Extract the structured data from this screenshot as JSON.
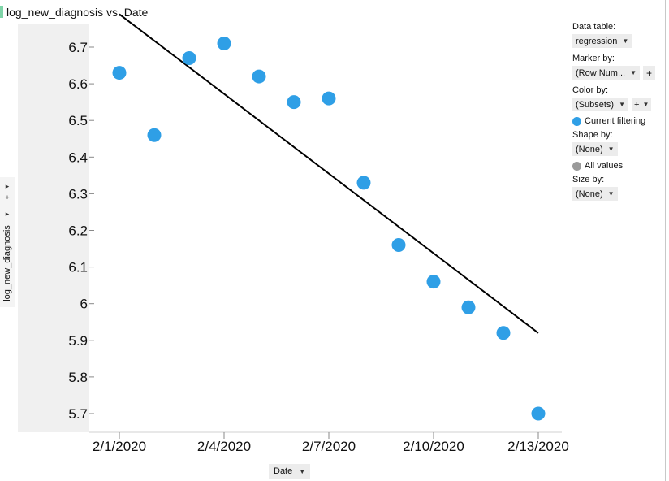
{
  "title": "log_new_diagnosis vs. Date",
  "y_axis_label": "log_new_diagnosis",
  "x_axis_button": "Date",
  "panel": {
    "data_table_label": "Data table:",
    "data_table_value": "regression",
    "marker_by_label": "Marker by:",
    "marker_by_value": "(Row Num...",
    "color_by_label": "Color by:",
    "color_by_value": "(Subsets)",
    "legend_current": "Current filtering",
    "shape_by_label": "Shape by:",
    "shape_by_value": "(None)",
    "legend_all": "All values",
    "size_by_label": "Size by:",
    "size_by_value": "(None)",
    "plus": "+"
  },
  "colors": {
    "points": "#2f9fe6",
    "all_values": "#9a9a9a",
    "regression_line": "#000000"
  },
  "chart_data": {
    "type": "scatter",
    "title": "log_new_diagnosis vs. Date",
    "xlabel": "Date",
    "ylabel": "log_new_diagnosis",
    "x_ticks": [
      "2/1/2020",
      "2/4/2020",
      "2/7/2020",
      "2/10/2020",
      "2/13/2020"
    ],
    "y_ticks": [
      "6.7",
      "6.6",
      "6.5",
      "6.4",
      "6.3",
      "6.2",
      "6.1",
      "6",
      "5.9",
      "5.8",
      "5.7"
    ],
    "ylim": [
      5.67,
      6.77
    ],
    "points": [
      {
        "x": "2/1/2020",
        "y": 6.63
      },
      {
        "x": "2/2/2020",
        "y": 6.46
      },
      {
        "x": "2/3/2020",
        "y": 6.67
      },
      {
        "x": "2/4/2020",
        "y": 6.71
      },
      {
        "x": "2/5/2020",
        "y": 6.62
      },
      {
        "x": "2/6/2020",
        "y": 6.55
      },
      {
        "x": "2/7/2020",
        "y": 6.56
      },
      {
        "x": "2/8/2020",
        "y": 6.33
      },
      {
        "x": "2/9/2020",
        "y": 6.16
      },
      {
        "x": "2/10/2020",
        "y": 6.06
      },
      {
        "x": "2/11/2020",
        "y": 5.99
      },
      {
        "x": "2/12/2020",
        "y": 5.92
      },
      {
        "x": "2/13/2020",
        "y": 5.7
      }
    ],
    "regression_line": [
      {
        "x": "2/1/2020",
        "y": 6.79
      },
      {
        "x": "2/13/2020",
        "y": 5.92
      }
    ],
    "grid": false,
    "legend": "right panel"
  }
}
